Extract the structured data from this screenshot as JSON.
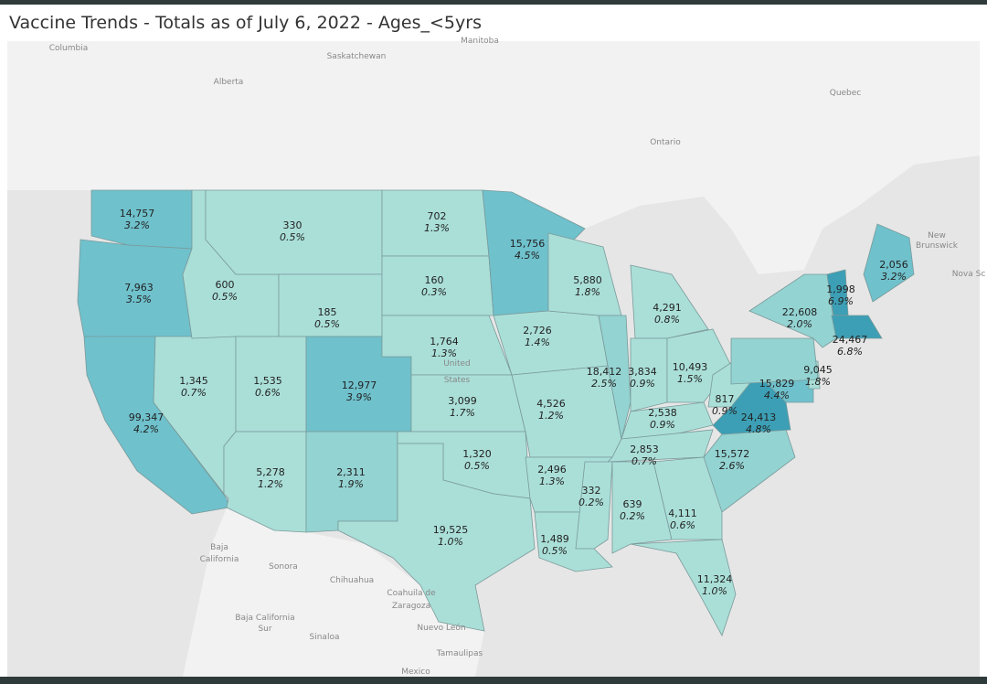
{
  "header": {
    "title": "Vaccine Trends - Totals as of July 6, 2022 - Ages_<5yrs"
  },
  "base_labels": [
    "Columbia",
    "Saskatchewan",
    "Manitoba",
    "Alberta",
    "Quebec",
    "Ontario",
    "New",
    "Brunswick",
    "Nova Sc",
    "United",
    "States",
    "Baja",
    "California",
    "Sonora",
    "Chihuahua",
    "Coahuila de",
    "Zaragoza",
    "Nuevo León",
    "Baja California",
    "Sur",
    "Sinaloa",
    "Tamaulipas",
    "Mexico"
  ],
  "regions": [
    {
      "count": "14,757",
      "pct": "3.2%"
    },
    {
      "count": "7,963",
      "pct": "3.5%"
    },
    {
      "count": "99,347",
      "pct": "4.2%"
    },
    {
      "count": "1,345",
      "pct": "0.7%"
    },
    {
      "count": "600",
      "pct": "0.5%"
    },
    {
      "count": "330",
      "pct": "0.5%"
    },
    {
      "count": "185",
      "pct": "0.5%"
    },
    {
      "count": "1,535",
      "pct": "0.6%"
    },
    {
      "count": "12,977",
      "pct": "3.9%"
    },
    {
      "count": "5,278",
      "pct": "1.2%"
    },
    {
      "count": "2,311",
      "pct": "1.9%"
    },
    {
      "count": "702",
      "pct": "1.3%"
    },
    {
      "count": "160",
      "pct": "0.3%"
    },
    {
      "count": "1,764",
      "pct": "1.3%"
    },
    {
      "count": "3,099",
      "pct": "1.7%"
    },
    {
      "count": "1,320",
      "pct": "0.5%"
    },
    {
      "count": "19,525",
      "pct": "1.0%"
    },
    {
      "count": "15,756",
      "pct": "4.5%"
    },
    {
      "count": "2,726",
      "pct": "1.4%"
    },
    {
      "count": "4,526",
      "pct": "1.2%"
    },
    {
      "count": "2,496",
      "pct": "1.3%"
    },
    {
      "count": "1,489",
      "pct": "0.5%"
    },
    {
      "count": "5,880",
      "pct": "1.8%"
    },
    {
      "count": "18,412",
      "pct": "2.5%"
    },
    {
      "count": "4,291",
      "pct": "0.8%"
    },
    {
      "count": "3,834",
      "pct": "0.9%"
    },
    {
      "count": "10,493",
      "pct": "1.5%"
    },
    {
      "count": "2,538",
      "pct": "0.9%"
    },
    {
      "count": "2,853",
      "pct": "0.7%"
    },
    {
      "count": "332",
      "pct": "0.2%"
    },
    {
      "count": "639",
      "pct": "0.2%"
    },
    {
      "count": "4,111",
      "pct": "0.6%"
    },
    {
      "count": "11,324",
      "pct": "1.0%"
    },
    {
      "count": "15,572",
      "pct": "2.6%"
    },
    {
      "count": "817",
      "pct": "0.9%"
    },
    {
      "count": "24,413",
      "pct": "4.8%"
    },
    {
      "count": "15,829",
      "pct": "4.4%"
    },
    {
      "count": "9,045",
      "pct": "1.8%"
    },
    {
      "count": "22,608",
      "pct": "2.0%"
    },
    {
      "count": "1,998",
      "pct": "6.9%"
    },
    {
      "count": "24,467",
      "pct": "6.8%"
    },
    {
      "count": "2,056",
      "pct": "3.2%"
    }
  ]
}
